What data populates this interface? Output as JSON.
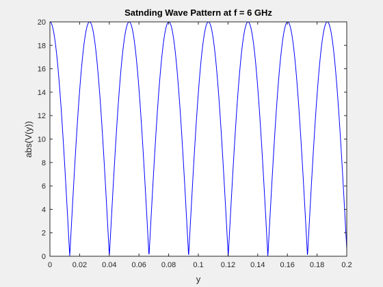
{
  "chart_data": {
    "type": "line",
    "title": "Satnding Wave Pattern at f = 6 GHz",
    "xlabel": "y",
    "ylabel": "abs(V(y))",
    "xlim": [
      0,
      0.2
    ],
    "ylim": [
      0,
      20
    ],
    "x_ticks": [
      "0",
      "0.02",
      "0.04",
      "0.06",
      "0.08",
      "0.1",
      "0.12",
      "0.14",
      "0.16",
      "0.18",
      "0.2"
    ],
    "y_ticks": [
      "0",
      "2",
      "4",
      "6",
      "8",
      "10",
      "12",
      "14",
      "16",
      "18",
      "20"
    ],
    "grid": false,
    "series": [
      {
        "color": "#0000ff",
        "peak": 20,
        "peaks_at_y": [
          0,
          0.0267,
          0.0534,
          0.0801,
          0.1068,
          0.1335,
          0.1602,
          0.1869
        ],
        "nulls_at_y": [
          0.0134,
          0.0401,
          0.0668,
          0.0935,
          0.1202,
          0.1469,
          0.1736
        ],
        "spatial_period": 0.0267,
        "samples": 1200
      }
    ]
  }
}
